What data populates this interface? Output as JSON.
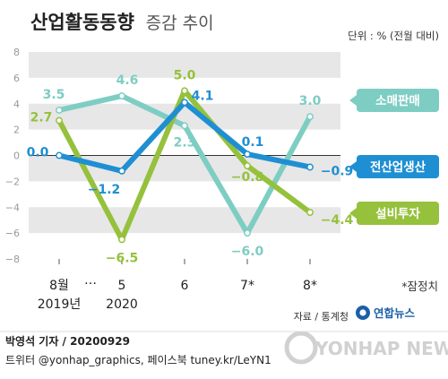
{
  "header": {
    "title_bold": "산업활동동향",
    "title_light": "증감 추이",
    "unit": "단위 : % (전월 대비)"
  },
  "notes": {
    "provisional": "*잠정치",
    "source": "자료 / 통계청",
    "agency_logo": "연합뉴스",
    "watermark": "YONHAP NEWS"
  },
  "credit": {
    "author_line": "박영석 기자 / 20200929",
    "social_line": "트위터 @yonhap_graphics, 페이스북 tuney.kr/LeYN1"
  },
  "colors": {
    "retail": "#7ecdc3",
    "production": "#1f8fd3",
    "investment": "#95c13c",
    "band": "#e7e7e7",
    "axis_text": "#999999",
    "zero_line": "#333333"
  },
  "chart_data": {
    "type": "line",
    "title": "산업활동동향 증감 추이",
    "xlabel": "",
    "ylabel": "",
    "ylim": [
      -8,
      8
    ],
    "yticks": [
      -8,
      -6,
      -4,
      -2,
      0,
      2,
      4,
      6,
      8
    ],
    "grid": "alternating horizontal bands",
    "legend": "right, labels at line ends",
    "x_labels": [
      {
        "label": "8월",
        "sub": "2019년"
      },
      {
        "label": "…",
        "sub": ""
      },
      {
        "label": "5",
        "sub": "2020"
      },
      {
        "label": "6",
        "sub": ""
      },
      {
        "label": "7*",
        "sub": ""
      },
      {
        "label": "8*",
        "sub": ""
      }
    ],
    "categories": [
      "8월 2019년",
      "5 2020",
      "6",
      "7*",
      "8*"
    ],
    "series": [
      {
        "name": "소매판매",
        "color_key": "retail",
        "values": [
          3.5,
          4.6,
          2.3,
          -6.0,
          3.0
        ],
        "labels": [
          "3.5",
          "4.6",
          "2.3",
          "−6.0",
          "3.0"
        ]
      },
      {
        "name": "설비투자",
        "color_key": "investment",
        "values": [
          2.7,
          -6.5,
          5.0,
          -0.8,
          -4.4
        ],
        "labels": [
          "2.7",
          "−6.5",
          "5.0",
          "−0.8",
          "−4.4"
        ]
      },
      {
        "name": "전산업생산",
        "color_key": "production",
        "values": [
          0.0,
          -1.2,
          4.1,
          0.1,
          -0.9
        ],
        "labels": [
          "0.0",
          "−1.2",
          "4.1",
          "0.1",
          "−0.9"
        ]
      }
    ]
  }
}
